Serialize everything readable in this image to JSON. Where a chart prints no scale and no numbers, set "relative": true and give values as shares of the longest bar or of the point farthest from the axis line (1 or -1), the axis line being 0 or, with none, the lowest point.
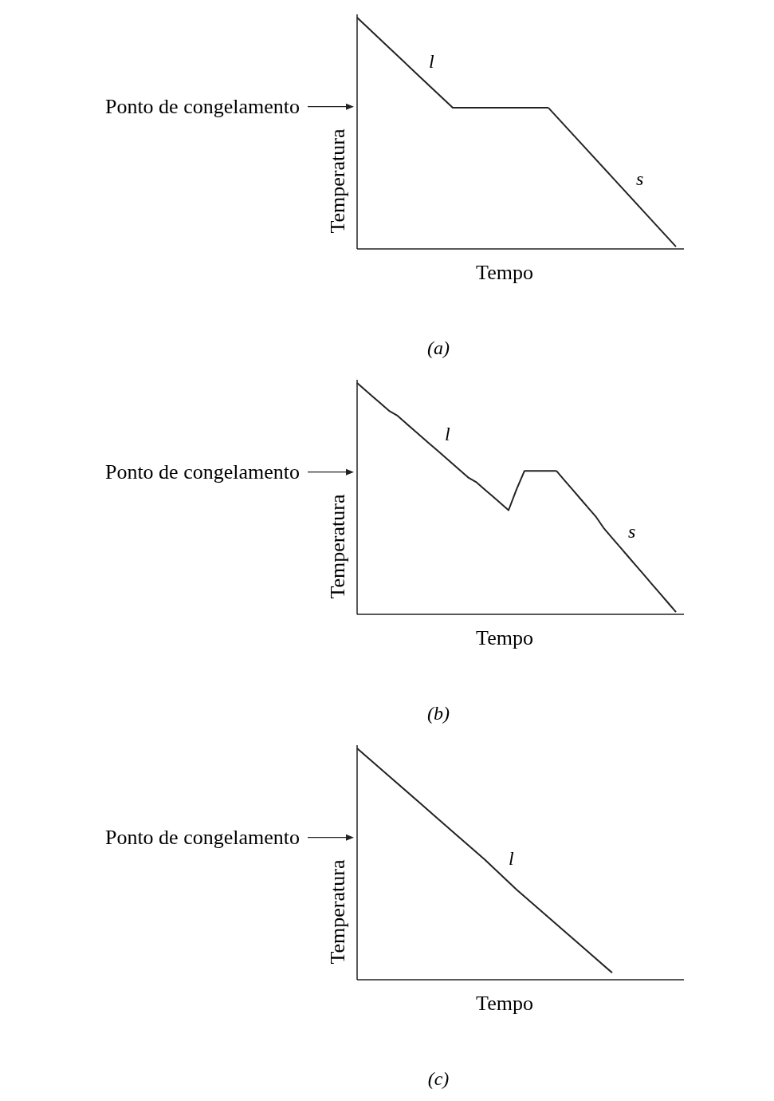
{
  "chart_data": [
    {
      "type": "line",
      "relative": true,
      "xlabel": "Tempo",
      "ylabel": "Temperatura",
      "categories": [
        null,
        null,
        null,
        null,
        null,
        null,
        null,
        null,
        null,
        null,
        null
      ],
      "series": [
        {
          "name": "l",
          "color": "#222222",
          "values": [
            1,
            0.87,
            0.74,
            0.61,
            0.61,
            0.61,
            0.61,
            null,
            null,
            null,
            null
          ]
        },
        {
          "name": "s",
          "color": "#222222",
          "values": [
            null,
            null,
            null,
            null,
            null,
            null,
            0.61,
            0.46,
            0.31,
            0.16,
            0.01
          ]
        }
      ],
      "annotations": [
        "Ponto de congelamento",
        "(a)"
      ]
    },
    {
      "type": "line",
      "relative": true,
      "xlabel": "Tempo",
      "ylabel": "Temperatura",
      "categories": [
        null,
        null,
        null,
        null,
        null,
        null,
        null,
        null,
        null,
        null,
        null,
        null,
        null,
        null,
        null,
        null,
        null,
        null,
        null,
        null,
        null,
        null,
        null,
        null,
        null,
        null,
        null,
        null,
        null,
        null,
        null,
        null,
        null,
        null,
        null,
        null,
        null,
        null,
        null,
        null,
        null
      ],
      "series": [
        {
          "name": "l",
          "color": "#222222",
          "values": [
            1,
            0.97,
            0.94,
            0.91,
            0.88,
            0.86,
            0.83,
            0.8,
            0.77,
            0.74,
            0.71,
            0.68,
            0.65,
            0.62,
            0.59,
            0.57,
            0.54,
            0.51,
            0.48,
            0.45,
            0.54,
            0.62,
            0.62,
            0.62,
            0.62,
            0.62,
            null,
            null,
            null,
            null,
            null,
            null,
            null,
            null,
            null,
            null,
            null,
            null,
            null,
            null,
            null
          ]
        },
        {
          "name": "s",
          "color": "#222222",
          "values": [
            null,
            null,
            null,
            null,
            null,
            null,
            null,
            null,
            null,
            null,
            null,
            null,
            null,
            null,
            null,
            null,
            null,
            null,
            null,
            null,
            null,
            null,
            null,
            null,
            null,
            0.62,
            0.58,
            0.54,
            0.5,
            0.46,
            0.42,
            0.37,
            0.33,
            0.29,
            0.25,
            0.21,
            0.17,
            0.13,
            0.09,
            0.05,
            0.01
          ]
        }
      ],
      "annotations": [
        "Ponto de congelamento",
        "(b)"
      ]
    },
    {
      "type": "line",
      "relative": true,
      "xlabel": "Tempo",
      "ylabel": "Temperatura",
      "categories": [
        null,
        null,
        null,
        null,
        null,
        null,
        null,
        null,
        null,
        null,
        null
      ],
      "series": [
        {
          "name": "l",
          "color": "#222222",
          "values": [
            1,
            0.88,
            0.76,
            0.64,
            0.52,
            0.39,
            0.27,
            0.15,
            0.03,
            null,
            null
          ]
        }
      ],
      "annotations": [
        "Ponto de congelamento",
        "(c)"
      ]
    }
  ]
}
